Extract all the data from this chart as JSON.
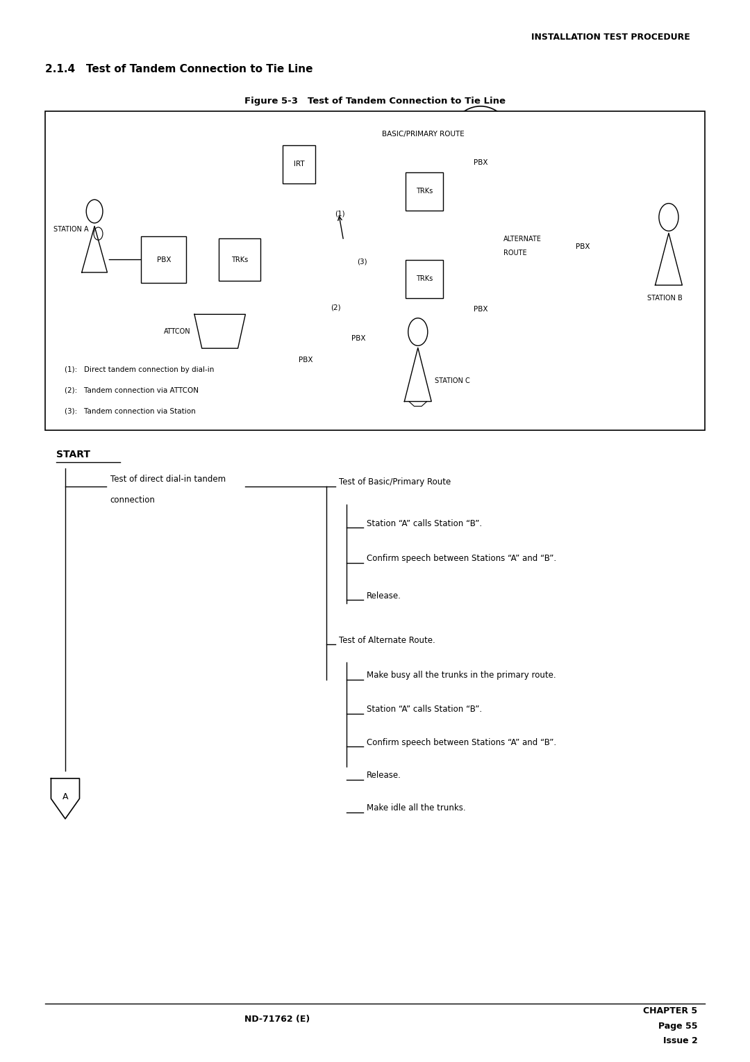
{
  "page_header": "INSTALLATION TEST PROCEDURE",
  "section_title": "2.1.4   Test of Tandem Connection to Tie Line",
  "figure_caption": "Figure 5-3   Test of Tandem Connection to Tie Line",
  "footer_left": "ND-71762 (E)",
  "footer_right_line1": "CHAPTER 5",
  "footer_right_line2": "Page 55",
  "footer_right_line3": "Issue 2",
  "legend": [
    "(1):   Direct tandem connection by dial-in",
    "(2):   Tandem connection via ATTCON",
    "(3):   Tandem connection via Station"
  ],
  "flowchart": {
    "start_label": "START",
    "level3_basic": [
      {
        "label": "Station “A” calls Station “B”."
      },
      {
        "label": "Confirm speech between Stations “A” and “B”."
      },
      {
        "label": "Release."
      }
    ],
    "level3_alternate": [
      {
        "label": "Make busy all the trunks in the primary route."
      },
      {
        "label": "Station “A” calls Station “B”."
      },
      {
        "label": "Confirm speech between Stations “A” and “B”."
      },
      {
        "label": "Release."
      },
      {
        "label": "Make idle all the trunks."
      }
    ]
  },
  "bg_color": "#ffffff",
  "text_color": "#000000"
}
